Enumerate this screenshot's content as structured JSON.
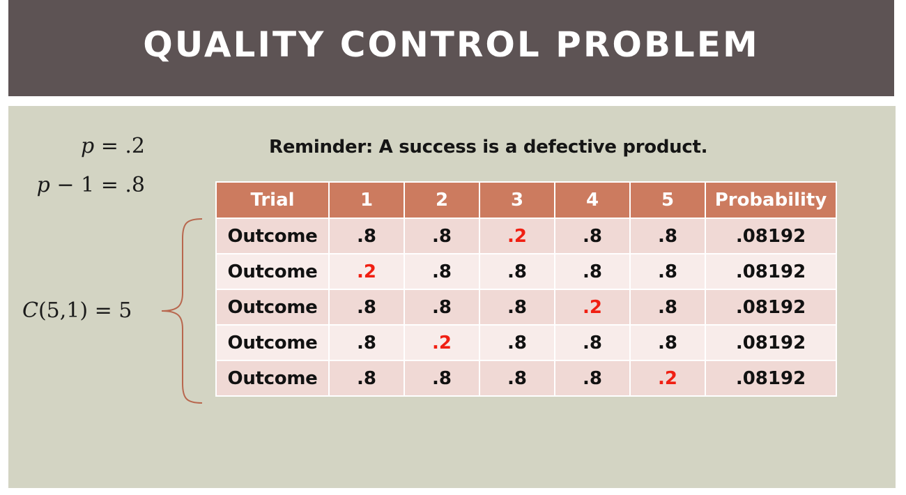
{
  "title": "QUALITY CONTROL PROBLEM",
  "reminder": "Reminder: A success is a defective product.",
  "equations": {
    "p": {
      "var": "p",
      "rhs": " = .2"
    },
    "q": {
      "var": "p",
      "rhs": " − 1 = .8"
    },
    "combo": {
      "var": "C",
      "rhs": "(5,1) = 5"
    }
  },
  "table": {
    "headers": [
      "Trial",
      "1",
      "2",
      "3",
      "4",
      "5",
      "Probability"
    ],
    "rows": [
      {
        "label": "Outcome",
        "values": [
          ".8",
          ".8",
          ".2",
          ".8",
          ".8"
        ],
        "success_index": 2,
        "probability": ".08192"
      },
      {
        "label": "Outcome",
        "values": [
          ".2",
          ".8",
          ".8",
          ".8",
          ".8"
        ],
        "success_index": 0,
        "probability": ".08192"
      },
      {
        "label": "Outcome",
        "values": [
          ".8",
          ".8",
          ".8",
          ".2",
          ".8"
        ],
        "success_index": 3,
        "probability": ".08192"
      },
      {
        "label": "Outcome",
        "values": [
          ".8",
          ".2",
          ".8",
          ".8",
          ".8"
        ],
        "success_index": 1,
        "probability": ".08192"
      },
      {
        "label": "Outcome",
        "values": [
          ".8",
          ".8",
          ".8",
          ".8",
          ".2"
        ],
        "success_index": 4,
        "probability": ".08192"
      }
    ]
  },
  "colors": {
    "title_bar": "#5d5354",
    "content_bg": "#d3d4c3",
    "header_bg": "#cc7b5f",
    "success_text": "#f01f12",
    "brace": "#b8674e"
  }
}
